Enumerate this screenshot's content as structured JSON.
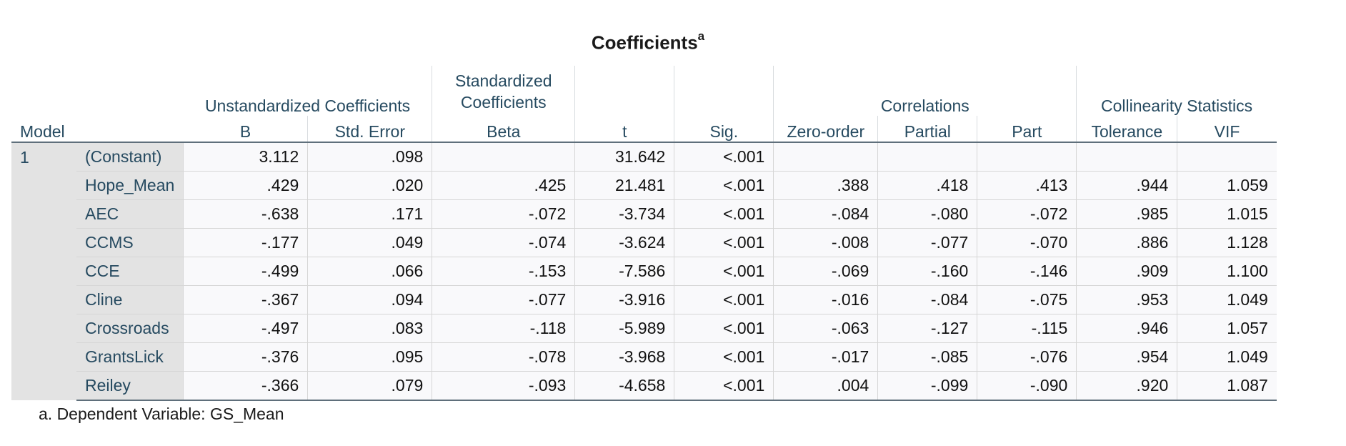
{
  "title": "Coefficients",
  "title_sup": "a",
  "header": {
    "model": "Model",
    "unstd_group": "Unstandardized Coefficients",
    "std_group": "Standardized Coefficients",
    "corr_group": "Correlations",
    "col_group": "Collinearity Statistics",
    "b": "B",
    "std_error": "Std. Error",
    "beta": "Beta",
    "t": "t",
    "sig": "Sig.",
    "zero_order": "Zero-order",
    "partial": "Partial",
    "part": "Part",
    "tolerance": "Tolerance",
    "vif": "VIF"
  },
  "model_number": "1",
  "rows": [
    {
      "var": "(Constant)",
      "b": "3.112",
      "se": ".098",
      "beta": "",
      "t": "31.642",
      "sig": "<.001",
      "zero": "",
      "partial": "",
      "part": "",
      "tol": "",
      "vif": ""
    },
    {
      "var": "Hope_Mean",
      "b": ".429",
      "se": ".020",
      "beta": ".425",
      "t": "21.481",
      "sig": "<.001",
      "zero": ".388",
      "partial": ".418",
      "part": ".413",
      "tol": ".944",
      "vif": "1.059"
    },
    {
      "var": "AEC",
      "b": "-.638",
      "se": ".171",
      "beta": "-.072",
      "t": "-3.734",
      "sig": "<.001",
      "zero": "-.084",
      "partial": "-.080",
      "part": "-.072",
      "tol": ".985",
      "vif": "1.015"
    },
    {
      "var": "CCMS",
      "b": "-.177",
      "se": ".049",
      "beta": "-.074",
      "t": "-3.624",
      "sig": "<.001",
      "zero": "-.008",
      "partial": "-.077",
      "part": "-.070",
      "tol": ".886",
      "vif": "1.128"
    },
    {
      "var": "CCE",
      "b": "-.499",
      "se": ".066",
      "beta": "-.153",
      "t": "-7.586",
      "sig": "<.001",
      "zero": "-.069",
      "partial": "-.160",
      "part": "-.146",
      "tol": ".909",
      "vif": "1.100"
    },
    {
      "var": "Cline",
      "b": "-.367",
      "se": ".094",
      "beta": "-.077",
      "t": "-3.916",
      "sig": "<.001",
      "zero": "-.016",
      "partial": "-.084",
      "part": "-.075",
      "tol": ".953",
      "vif": "1.049"
    },
    {
      "var": "Crossroads",
      "b": "-.497",
      "se": ".083",
      "beta": "-.118",
      "t": "-5.989",
      "sig": "<.001",
      "zero": "-.063",
      "partial": "-.127",
      "part": "-.115",
      "tol": ".946",
      "vif": "1.057"
    },
    {
      "var": "GrantsLick",
      "b": "-.376",
      "se": ".095",
      "beta": "-.078",
      "t": "-3.968",
      "sig": "<.001",
      "zero": "-.017",
      "partial": "-.085",
      "part": "-.076",
      "tol": ".954",
      "vif": "1.049"
    },
    {
      "var": "Reiley",
      "b": "-.366",
      "se": ".079",
      "beta": "-.093",
      "t": "-4.658",
      "sig": "<.001",
      "zero": ".004",
      "partial": "-.099",
      "part": "-.090",
      "tol": ".920",
      "vif": "1.087"
    }
  ],
  "footnote": "a. Dependent Variable: GS_Mean"
}
